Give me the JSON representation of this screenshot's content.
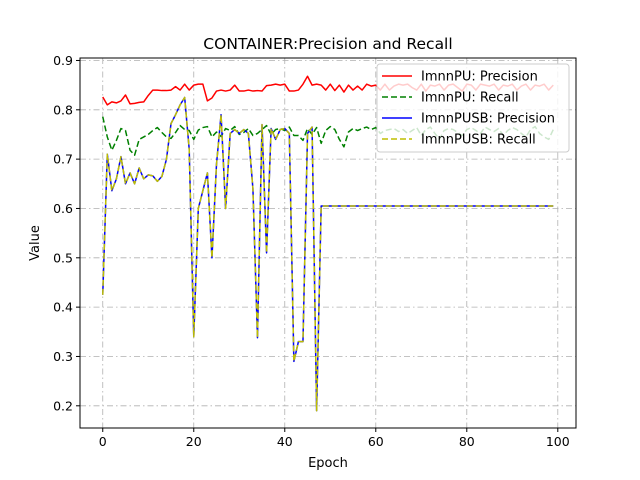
{
  "chart_data": {
    "type": "line",
    "title": "CONTAINER:Precision and Recall",
    "xlabel": "Epoch",
    "ylabel": "Value",
    "xlim": [
      -5,
      104
    ],
    "ylim": [
      0.155,
      0.905
    ],
    "xticks": [
      0,
      20,
      40,
      60,
      80,
      100
    ],
    "yticks": [
      0.2,
      0.3,
      0.4,
      0.5,
      0.6,
      0.7,
      0.8,
      0.9
    ],
    "grid": true,
    "legend_position": "top-right",
    "series": [
      {
        "name": "ImnnPU: Precision",
        "color": "#ff0000",
        "style": "solid",
        "x": [
          0,
          1,
          2,
          3,
          4,
          5,
          6,
          7,
          8,
          9,
          10,
          11,
          12,
          13,
          14,
          15,
          16,
          17,
          18,
          19,
          20,
          21,
          22,
          23,
          24,
          25,
          26,
          27,
          28,
          29,
          30,
          31,
          32,
          33,
          34,
          35,
          36,
          37,
          38,
          39,
          40,
          41,
          42,
          43,
          44,
          45,
          46,
          47,
          48,
          49,
          50,
          51,
          52,
          53,
          54,
          55,
          56,
          57,
          58,
          59,
          60,
          61,
          62,
          63,
          64,
          65,
          66,
          67,
          68,
          69,
          70,
          71,
          72,
          73,
          74,
          75,
          76,
          77,
          78,
          79,
          80,
          81,
          82,
          83,
          84,
          85,
          86,
          87,
          88,
          89,
          90,
          91,
          92,
          93,
          94,
          95,
          96,
          97,
          98,
          99
        ],
        "values": [
          0.826,
          0.81,
          0.816,
          0.814,
          0.818,
          0.83,
          0.812,
          0.813,
          0.815,
          0.816,
          0.829,
          0.84,
          0.84,
          0.839,
          0.839,
          0.84,
          0.847,
          0.84,
          0.852,
          0.84,
          0.85,
          0.852,
          0.852,
          0.818,
          0.824,
          0.838,
          0.84,
          0.838,
          0.84,
          0.85,
          0.838,
          0.838,
          0.84,
          0.838,
          0.839,
          0.838,
          0.849,
          0.85,
          0.852,
          0.85,
          0.852,
          0.838,
          0.838,
          0.84,
          0.852,
          0.868,
          0.85,
          0.852,
          0.85,
          0.84,
          0.852,
          0.839,
          0.85,
          0.836,
          0.85,
          0.84,
          0.848,
          0.84,
          0.852,
          0.848,
          0.85,
          0.84,
          0.852,
          0.84,
          0.848,
          0.852,
          0.85,
          0.852,
          0.845,
          0.84,
          0.852,
          0.838,
          0.85,
          0.848,
          0.852,
          0.84,
          0.85,
          0.852,
          0.845,
          0.838,
          0.852,
          0.85,
          0.84,
          0.852,
          0.85,
          0.848,
          0.852,
          0.84,
          0.85,
          0.848,
          0.852,
          0.84,
          0.848,
          0.852,
          0.84,
          0.85,
          0.848,
          0.852,
          0.84,
          0.85
        ]
      },
      {
        "name": "ImnnPU: Recall",
        "color": "#008000",
        "style": "dashed",
        "x": [
          0,
          1,
          2,
          3,
          4,
          5,
          6,
          7,
          8,
          9,
          10,
          11,
          12,
          13,
          14,
          15,
          16,
          17,
          18,
          19,
          20,
          21,
          22,
          23,
          24,
          25,
          26,
          27,
          28,
          29,
          30,
          31,
          32,
          33,
          34,
          35,
          36,
          37,
          38,
          39,
          40,
          41,
          42,
          43,
          44,
          45,
          46,
          47,
          48,
          49,
          50,
          51,
          52,
          53,
          54,
          55,
          56,
          57,
          58,
          59,
          60,
          61,
          62,
          63,
          64,
          65,
          66,
          67,
          68,
          69,
          70,
          71,
          72,
          73,
          74,
          75,
          76,
          77,
          78,
          79,
          80,
          81,
          82,
          83,
          84,
          85,
          86,
          87,
          88,
          89,
          90,
          91,
          92,
          93,
          94,
          95,
          96,
          97,
          98,
          99
        ],
        "values": [
          0.786,
          0.745,
          0.718,
          0.738,
          0.762,
          0.758,
          0.718,
          0.708,
          0.74,
          0.745,
          0.75,
          0.758,
          0.764,
          0.754,
          0.745,
          0.742,
          0.754,
          0.768,
          0.76,
          0.758,
          0.74,
          0.759,
          0.764,
          0.766,
          0.745,
          0.755,
          0.746,
          0.762,
          0.758,
          0.766,
          0.75,
          0.754,
          0.762,
          0.748,
          0.752,
          0.76,
          0.768,
          0.75,
          0.76,
          0.762,
          0.758,
          0.765,
          0.748,
          0.748,
          0.738,
          0.762,
          0.75,
          0.764,
          0.732,
          0.758,
          0.766,
          0.76,
          0.74,
          0.725,
          0.755,
          0.762,
          0.758,
          0.762,
          0.765,
          0.76,
          0.764,
          0.752,
          0.758,
          0.76,
          0.762,
          0.756,
          0.76,
          0.752,
          0.758,
          0.764,
          0.748,
          0.76,
          0.765,
          0.752,
          0.74,
          0.758,
          0.762,
          0.76,
          0.754,
          0.748,
          0.76,
          0.764,
          0.758,
          0.752,
          0.765,
          0.76,
          0.756,
          0.762,
          0.748,
          0.758,
          0.764,
          0.76,
          0.752,
          0.745,
          0.76,
          0.766,
          0.752,
          0.745,
          0.74,
          0.76
        ]
      },
      {
        "name": "ImnnPUSB: Precision",
        "color": "#0000ff",
        "style": "solid",
        "x": [
          0,
          1,
          2,
          3,
          4,
          5,
          6,
          7,
          8,
          9,
          10,
          11,
          12,
          13,
          14,
          15,
          16,
          17,
          18,
          19,
          20,
          21,
          22,
          23,
          24,
          25,
          26,
          27,
          28,
          29,
          30,
          31,
          32,
          33,
          34,
          35,
          36,
          37,
          38,
          39,
          40,
          41,
          42,
          43,
          44,
          45,
          46,
          47,
          48,
          49,
          50,
          51,
          52,
          53,
          54,
          55,
          56,
          57,
          58,
          59,
          60,
          61,
          62,
          63,
          64,
          65,
          66,
          67,
          68,
          69,
          70,
          71,
          72,
          73,
          74,
          75,
          76,
          77,
          78,
          79,
          80,
          81,
          82,
          83,
          84,
          85,
          86,
          87,
          88,
          89,
          90,
          91,
          92,
          93,
          94,
          95,
          96,
          97,
          98,
          99
        ],
        "values": [
          0.425,
          0.71,
          0.636,
          0.66,
          0.705,
          0.65,
          0.672,
          0.65,
          0.682,
          0.66,
          0.668,
          0.666,
          0.655,
          0.665,
          0.7,
          0.772,
          0.79,
          0.81,
          0.825,
          0.72,
          0.34,
          0.6,
          0.636,
          0.672,
          0.5,
          0.69,
          0.79,
          0.6,
          0.752,
          0.76,
          0.752,
          0.76,
          0.752,
          0.64,
          0.338,
          0.77,
          0.51,
          0.762,
          0.74,
          0.76,
          0.762,
          0.752,
          0.29,
          0.33,
          0.33,
          0.752,
          0.765,
          0.19,
          0.605,
          0.605,
          0.605,
          0.605,
          0.605,
          0.605,
          0.605,
          0.605,
          0.605,
          0.605,
          0.605,
          0.605,
          0.605,
          0.605,
          0.605,
          0.605,
          0.605,
          0.605,
          0.605,
          0.605,
          0.605,
          0.605,
          0.605,
          0.605,
          0.605,
          0.605,
          0.605,
          0.605,
          0.605,
          0.605,
          0.605,
          0.605,
          0.605,
          0.605,
          0.605,
          0.605,
          0.605,
          0.605,
          0.605,
          0.605,
          0.605,
          0.605,
          0.605,
          0.605,
          0.605,
          0.605,
          0.605,
          0.605,
          0.605,
          0.605,
          0.605,
          0.605
        ]
      },
      {
        "name": "ImnnPUSB: Recall",
        "color": "#bfbf00",
        "style": "dashed",
        "x": [
          0,
          1,
          2,
          3,
          4,
          5,
          6,
          7,
          8,
          9,
          10,
          11,
          12,
          13,
          14,
          15,
          16,
          17,
          18,
          19,
          20,
          21,
          22,
          23,
          24,
          25,
          26,
          27,
          28,
          29,
          30,
          31,
          32,
          33,
          34,
          35,
          36,
          37,
          38,
          39,
          40,
          41,
          42,
          43,
          44,
          45,
          46,
          47,
          48,
          49,
          50,
          51,
          52,
          53,
          54,
          55,
          56,
          57,
          58,
          59,
          60,
          61,
          62,
          63,
          64,
          65,
          66,
          67,
          68,
          69,
          70,
          71,
          72,
          73,
          74,
          75,
          76,
          77,
          78,
          79,
          80,
          81,
          82,
          83,
          84,
          85,
          86,
          87,
          88,
          89,
          90,
          91,
          92,
          93,
          94,
          95,
          96,
          97,
          98,
          99
        ],
        "values": [
          0.425,
          0.71,
          0.636,
          0.66,
          0.705,
          0.65,
          0.672,
          0.65,
          0.682,
          0.66,
          0.668,
          0.666,
          0.655,
          0.665,
          0.7,
          0.772,
          0.79,
          0.81,
          0.825,
          0.72,
          0.34,
          0.6,
          0.636,
          0.672,
          0.5,
          0.69,
          0.79,
          0.6,
          0.752,
          0.76,
          0.752,
          0.76,
          0.752,
          0.64,
          0.338,
          0.77,
          0.51,
          0.762,
          0.74,
          0.76,
          0.762,
          0.752,
          0.29,
          0.33,
          0.33,
          0.752,
          0.765,
          0.19,
          0.605,
          0.605,
          0.605,
          0.605,
          0.605,
          0.605,
          0.605,
          0.605,
          0.605,
          0.605,
          0.605,
          0.605,
          0.605,
          0.605,
          0.605,
          0.605,
          0.605,
          0.605,
          0.605,
          0.605,
          0.605,
          0.605,
          0.605,
          0.605,
          0.605,
          0.605,
          0.605,
          0.605,
          0.605,
          0.605,
          0.605,
          0.605,
          0.605,
          0.605,
          0.605,
          0.605,
          0.605,
          0.605,
          0.605,
          0.605,
          0.605,
          0.605,
          0.605,
          0.605,
          0.605,
          0.605,
          0.605,
          0.605,
          0.605,
          0.605,
          0.605,
          0.605
        ]
      }
    ]
  }
}
